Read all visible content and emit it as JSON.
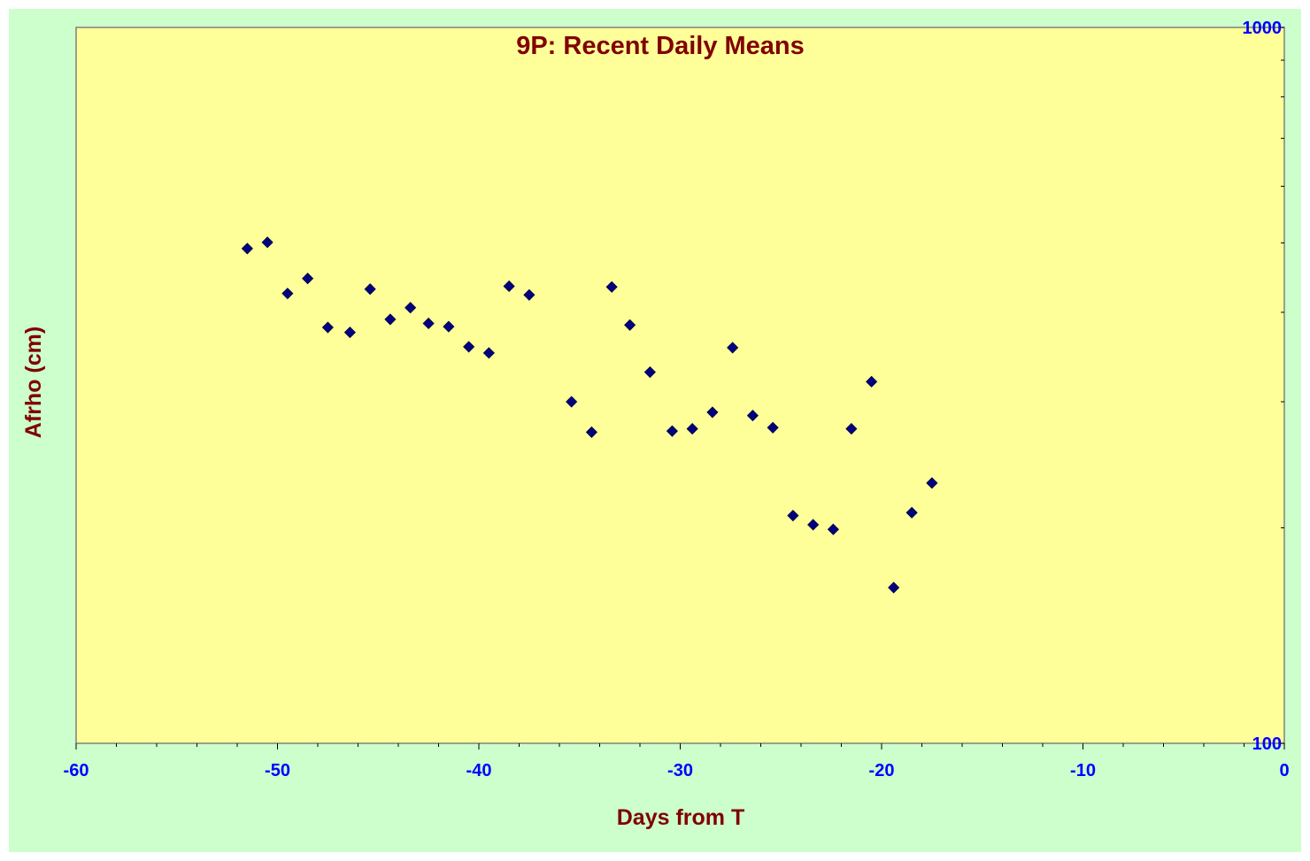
{
  "colors": {
    "chart_background": "#ccffcc",
    "plot_background": "#ffff99",
    "title": "#800000",
    "tick_labels": "#0000ff",
    "marker": "#000080"
  },
  "chart_data": {
    "type": "scatter",
    "title": "9P: Recent Daily Means",
    "xlabel": "Days from T",
    "ylabel": "Afrho (cm)",
    "xlim": [
      -60,
      0
    ],
    "ylim": [
      100,
      1000
    ],
    "y_scale": "log",
    "y_axis_position": "right",
    "x_ticks": [
      -60,
      -50,
      -40,
      -30,
      -20,
      -10,
      0
    ],
    "x_tick_labels": [
      "-60",
      "-50",
      "-40",
      "-30",
      "-20",
      "-10",
      "0"
    ],
    "y_tick_labels": [
      "1000",
      "100"
    ],
    "y_ticks": [
      1000,
      100
    ],
    "grid": false,
    "legend": "none",
    "marker": "diamond",
    "series": [
      {
        "x": [
          -51.5,
          -50.5,
          -49.5,
          -48.5,
          -47.5,
          -46.4,
          -45.4,
          -44.4,
          -43.4,
          -42.5,
          -41.5,
          -40.5,
          -39.5,
          -38.5,
          -37.5,
          -35.4,
          -34.4,
          -33.4,
          -32.5,
          -31.5,
          -30.4,
          -29.4,
          -28.4,
          -27.4,
          -26.4,
          -25.4,
          -24.4,
          -23.4,
          -22.4,
          -21.5,
          -20.5,
          -19.4,
          -18.5,
          -17.5
        ],
        "y": [
          491,
          501,
          425,
          446,
          381,
          375,
          431,
          391,
          406,
          386,
          382,
          358,
          351,
          435,
          423,
          300,
          272,
          434,
          384,
          330,
          273,
          275,
          290,
          357,
          287,
          276,
          208,
          202,
          199,
          275,
          320,
          165,
          210,
          231
        ]
      }
    ]
  }
}
